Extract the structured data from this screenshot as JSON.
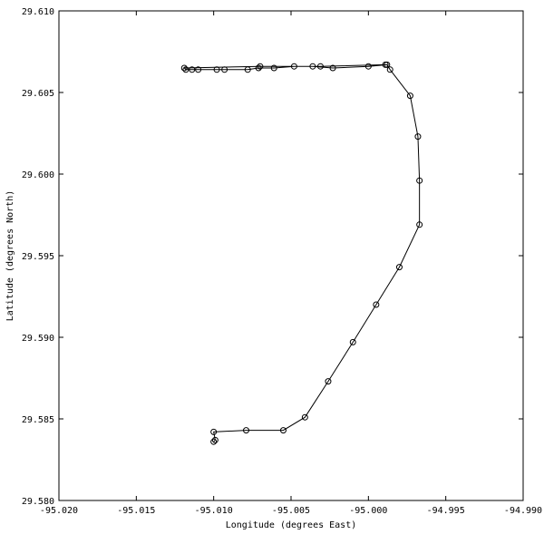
{
  "chart_data": {
    "type": "line",
    "color": "#000000",
    "marker": "circle",
    "xlabel": "Longitude (degrees East)",
    "ylabel": "Latitude (degrees North)",
    "x": [
      -95.01,
      -95.0099,
      -95.01,
      -95.0079,
      -95.0055,
      -95.0041,
      -95.0026,
      -95.001,
      -94.9995,
      -94.998,
      -94.9967,
      -94.9967,
      -94.9968,
      -94.9973,
      -94.9986,
      -94.9988,
      -95.0,
      -95.0023,
      -95.0036,
      -95.0048,
      -95.0061,
      -95.0071,
      -95.0078,
      -95.0093,
      -95.0098,
      -95.011,
      -95.0114,
      -95.0118,
      -95.0119,
      -95.007,
      -95.0031,
      -94.9989
    ],
    "y": [
      29.5836,
      29.5837,
      29.5842,
      29.5843,
      29.5843,
      29.5851,
      29.5873,
      29.5897,
      29.592,
      29.5943,
      29.5969,
      29.5996,
      29.6023,
      29.6048,
      29.6064,
      29.6067,
      29.6066,
      29.6065,
      29.6066,
      29.6066,
      29.6065,
      29.6065,
      29.6064,
      29.6064,
      29.6064,
      29.6064,
      29.6064,
      29.6064,
      29.6065,
      29.6066,
      29.6066,
      29.6067
    ],
    "xlim": [
      -95.02,
      -94.99
    ],
    "xticks": [
      {
        "value": -95.02,
        "label": "-95.020"
      },
      -95.015,
      {
        "value": -95.01,
        "label": "-95.010"
      },
      -95.005,
      {
        "value": -95.0,
        "label": "-95.000"
      },
      -94.995,
      {
        "value": -94.99,
        "label": "-94.990"
      }
    ],
    "ylim": [
      29.58,
      29.61
    ],
    "yticks": [
      {
        "value": 29.58,
        "label": "29.580"
      },
      29.585,
      {
        "value": 29.59,
        "label": "29.590"
      },
      29.595,
      {
        "value": 29.6,
        "label": "29.600"
      },
      29.605,
      {
        "value": 29.61,
        "label": "29.610"
      }
    ],
    "grid": false
  }
}
